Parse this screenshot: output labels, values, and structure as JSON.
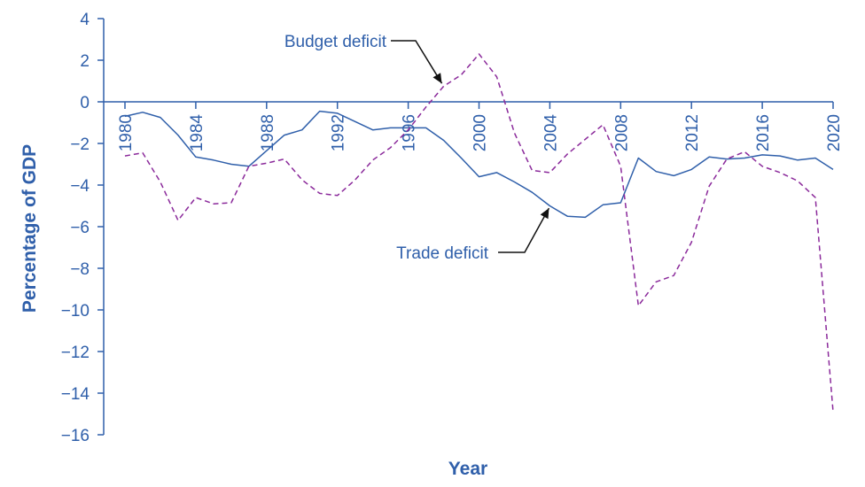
{
  "chart_data": {
    "type": "line",
    "title": "",
    "xlabel": "Year",
    "ylabel": "Percentage of GDP",
    "xlim": [
      1980,
      2020
    ],
    "ylim": [
      -16,
      4
    ],
    "xticks": [
      1980,
      1984,
      1988,
      1992,
      1996,
      2000,
      2004,
      2008,
      2012,
      2016,
      2020
    ],
    "yticks": [
      4,
      2,
      0,
      -2,
      -4,
      -6,
      -8,
      -10,
      -12,
      -14,
      -16
    ],
    "ytick_labels": [
      "4",
      "2",
      "0",
      "−2",
      "−4",
      "−6",
      "−8",
      "−10",
      "−12",
      "−14",
      "−16"
    ],
    "grid": false,
    "legend": "none",
    "annotations": [
      {
        "text": "Budget deficit",
        "series": "Budget deficit",
        "x": 1998,
        "y": 0.8
      },
      {
        "text": "Trade deficit",
        "series": "Trade deficit",
        "x": 2004,
        "y": -4.9
      }
    ],
    "colors": {
      "axis": "#2f5faa",
      "text": "#2f5faa",
      "trade": "#2f5faa",
      "budget": "#8b2a9b"
    },
    "x": [
      1980,
      1981,
      1982,
      1983,
      1984,
      1985,
      1986,
      1987,
      1988,
      1989,
      1990,
      1991,
      1992,
      1993,
      1994,
      1995,
      1996,
      1997,
      1998,
      1999,
      2000,
      2001,
      2002,
      2003,
      2004,
      2005,
      2006,
      2007,
      2008,
      2009,
      2010,
      2011,
      2012,
      2013,
      2014,
      2015,
      2016,
      2017,
      2018,
      2019,
      2020
    ],
    "series": [
      {
        "name": "Trade deficit",
        "style": "solid",
        "values": [
          -0.7,
          -0.5,
          -0.75,
          -1.6,
          -2.65,
          -2.8,
          -3.0,
          -3.1,
          -2.35,
          -1.6,
          -1.35,
          -0.45,
          -0.55,
          -0.95,
          -1.35,
          -1.25,
          -1.25,
          -1.25,
          -1.85,
          -2.7,
          -3.6,
          -3.4,
          -3.85,
          -4.35,
          -5.0,
          -5.5,
          -5.55,
          -4.95,
          -4.85,
          -2.7,
          -3.35,
          -3.55,
          -3.25,
          -2.65,
          -2.75,
          -2.7,
          -2.55,
          -2.6,
          -2.8,
          -2.7,
          -3.25
        ]
      },
      {
        "name": "Budget deficit",
        "style": "dashed",
        "values": [
          -2.6,
          -2.45,
          -3.85,
          -5.7,
          -4.6,
          -4.9,
          -4.85,
          -3.1,
          -2.95,
          -2.75,
          -3.75,
          -4.4,
          -4.5,
          -3.75,
          -2.8,
          -2.2,
          -1.35,
          -0.25,
          0.75,
          1.3,
          2.3,
          1.2,
          -1.5,
          -3.3,
          -3.4,
          -2.5,
          -1.8,
          -1.1,
          -3.1,
          -9.8,
          -8.65,
          -8.35,
          -6.75,
          -4.05,
          -2.75,
          -2.4,
          -3.1,
          -3.4,
          -3.8,
          -4.6,
          -14.9
        ]
      }
    ]
  }
}
